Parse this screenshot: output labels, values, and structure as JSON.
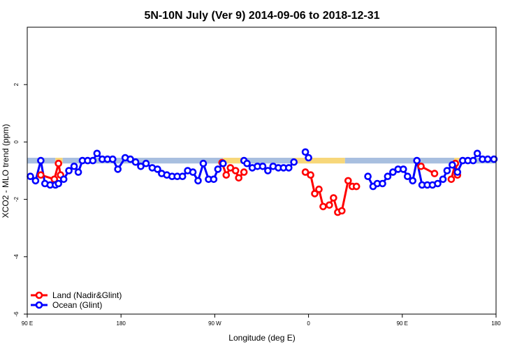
{
  "chart_data": {
    "type": "line",
    "title": "5N-10N July (Ver 9)   2014-09-06 to 2018-12-31",
    "xlabel": "Longitude (deg E)",
    "ylabel": "XCO2 - MLO trend (ppm)",
    "xlim": [
      90,
      540
    ],
    "ylim": [
      -6,
      4
    ],
    "x_ticks": [
      {
        "value": 90,
        "label": "90 E"
      },
      {
        "value": 180,
        "label": "180"
      },
      {
        "value": 270,
        "label": "90 W"
      },
      {
        "value": 360,
        "label": "0"
      },
      {
        "value": 450,
        "label": "90 E"
      },
      {
        "value": 540,
        "label": "180"
      }
    ],
    "y_ticks": [
      {
        "value": -6,
        "label": "-6"
      },
      {
        "value": -4,
        "label": "-4"
      },
      {
        "value": -2,
        "label": "-2"
      },
      {
        "value": 0,
        "label": "0"
      },
      {
        "value": 2,
        "label": "2"
      }
    ],
    "band": {
      "y_range": [
        -0.75,
        -0.55
      ],
      "segments": [
        {
          "x0": 90,
          "x1": 117,
          "color": "#a8bfdf"
        },
        {
          "x0": 117,
          "x1": 124,
          "color": "#f7d77a"
        },
        {
          "x0": 124,
          "x1": 278,
          "color": "#a8bfdf"
        },
        {
          "x0": 278,
          "x1": 296,
          "color": "#f7d77a"
        },
        {
          "x0": 296,
          "x1": 346,
          "color": "#a8bfdf"
        },
        {
          "x0": 346,
          "x1": 395,
          "color": "#f7d77a"
        },
        {
          "x0": 395,
          "x1": 500,
          "color": "#a8bfdf"
        },
        {
          "x0": 500,
          "x1": 507,
          "color": "#f7d77a"
        },
        {
          "x0": 507,
          "x1": 540,
          "color": "#a8bfdf"
        }
      ]
    },
    "legend": {
      "position": "bottom-left",
      "entries": [
        {
          "name": "Land (Nadir&Glint)",
          "color": "#ff0000"
        },
        {
          "name": "Ocean (Glint)",
          "color": "#0000ff"
        }
      ]
    },
    "series": [
      {
        "name": "Land (Nadir&Glint)",
        "color": "#ff0000",
        "segments": [
          [
            [
              103,
              -1.15
            ],
            [
              116,
              -1.3
            ],
            [
              120,
              -0.75
            ],
            [
              122,
              -1.15
            ]
          ],
          [
            [
              277,
              -0.72
            ],
            [
              281,
              -1.15
            ],
            [
              285,
              -0.9
            ],
            [
              290,
              -1.0
            ],
            [
              293,
              -1.25
            ],
            [
              298,
              -1.05
            ]
          ],
          [
            [
              357,
              -1.05
            ],
            [
              362,
              -1.15
            ],
            [
              366,
              -1.8
            ],
            [
              370,
              -1.65
            ],
            [
              374,
              -2.25
            ],
            [
              380,
              -2.2
            ],
            [
              384,
              -1.95
            ],
            [
              388,
              -2.45
            ],
            [
              392,
              -2.4
            ],
            [
              398,
              -1.35
            ],
            [
              402,
              -1.55
            ],
            [
              406,
              -1.55
            ]
          ],
          [
            [
              468,
              -0.85
            ],
            [
              481,
              -1.1
            ]
          ],
          [
            [
              497,
              -1.3
            ],
            [
              501,
              -0.75
            ],
            [
              503,
              -1.15
            ]
          ]
        ]
      },
      {
        "name": "Ocean (Glint)",
        "color": "#0000ff",
        "segments": [
          [
            [
              93,
              -1.2
            ],
            [
              98,
              -1.35
            ],
            [
              103,
              -0.65
            ],
            [
              107,
              -1.45
            ],
            [
              112,
              -1.5
            ],
            [
              117,
              -1.5
            ],
            [
              120,
              -1.45
            ],
            [
              125,
              -1.3
            ],
            [
              130,
              -1.0
            ],
            [
              135,
              -0.85
            ],
            [
              139,
              -1.05
            ],
            [
              143,
              -0.65
            ],
            [
              148,
              -0.65
            ],
            [
              153,
              -0.65
            ],
            [
              157,
              -0.4
            ],
            [
              162,
              -0.6
            ],
            [
              167,
              -0.6
            ],
            [
              172,
              -0.6
            ],
            [
              177,
              -0.95
            ],
            [
              184,
              -0.55
            ],
            [
              189,
              -0.6
            ],
            [
              194,
              -0.7
            ],
            [
              199,
              -0.85
            ],
            [
              204,
              -0.75
            ],
            [
              210,
              -0.9
            ],
            [
              215,
              -0.95
            ],
            [
              219,
              -1.1
            ],
            [
              224,
              -1.15
            ],
            [
              229,
              -1.2
            ],
            [
              234,
              -1.2
            ],
            [
              239,
              -1.2
            ],
            [
              244,
              -1.0
            ],
            [
              249,
              -1.05
            ],
            [
              254,
              -1.35
            ],
            [
              259,
              -0.75
            ],
            [
              264,
              -1.3
            ],
            [
              269,
              -1.3
            ],
            [
              273,
              -0.95
            ],
            [
              278,
              -0.75
            ]
          ],
          [
            [
              298,
              -0.65
            ],
            [
              301,
              -0.75
            ],
            [
              306,
              -0.9
            ],
            [
              311,
              -0.85
            ],
            [
              316,
              -0.85
            ],
            [
              321,
              -1.0
            ],
            [
              326,
              -0.85
            ],
            [
              331,
              -0.9
            ],
            [
              336,
              -0.9
            ],
            [
              341,
              -0.9
            ],
            [
              346,
              -0.7
            ]
          ],
          [
            [
              357,
              -0.35
            ],
            [
              360,
              -0.55
            ]
          ],
          [
            [
              417,
              -1.2
            ],
            [
              422,
              -1.55
            ],
            [
              426,
              -1.45
            ],
            [
              431,
              -1.45
            ],
            [
              436,
              -1.2
            ],
            [
              441,
              -1.05
            ],
            [
              446,
              -0.95
            ],
            [
              451,
              -0.95
            ],
            [
              455,
              -1.2
            ],
            [
              460,
              -1.35
            ],
            [
              464,
              -0.65
            ],
            [
              469,
              -1.5
            ],
            [
              474,
              -1.5
            ],
            [
              479,
              -1.5
            ],
            [
              484,
              -1.45
            ],
            [
              489,
              -1.3
            ],
            [
              493,
              -1.0
            ],
            [
              498,
              -0.8
            ],
            [
              503,
              -1.05
            ],
            [
              508,
              -0.65
            ],
            [
              513,
              -0.65
            ],
            [
              518,
              -0.65
            ],
            [
              522,
              -0.4
            ],
            [
              527,
              -0.6
            ],
            [
              532,
              -0.6
            ],
            [
              538,
              -0.6
            ]
          ]
        ]
      }
    ]
  }
}
